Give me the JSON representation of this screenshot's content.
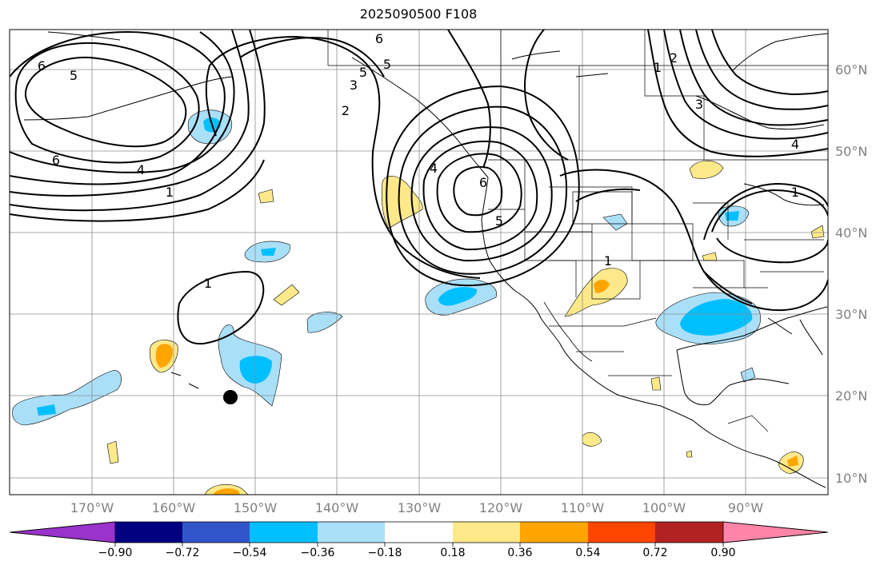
{
  "title": "2025090500 F108",
  "lat_labels": [
    "60°N",
    "50°N",
    "40°N",
    "30°N",
    "20°N",
    "10°N"
  ],
  "lon_labels": [
    "170°W",
    "160°W",
    "150°W",
    "140°W",
    "130°W",
    "120°W",
    "110°W",
    "100°W",
    "90°W"
  ],
  "contour_labels": [
    "6",
    "5",
    "6",
    "4",
    "1",
    "5",
    "3",
    "2",
    "6",
    "5",
    "4",
    "6",
    "5",
    "1",
    "1",
    "1",
    "2",
    "3",
    "4",
    "1"
  ],
  "colorbar": {
    "tick_labels": [
      "−0.90",
      "−0.72",
      "−0.54",
      "−0.36",
      "−0.18",
      "0.18",
      "0.36",
      "0.54",
      "0.72",
      "0.90"
    ],
    "colors": [
      "#9933cc",
      "#000080",
      "#3355cc",
      "#00bfff",
      "#aadff8",
      "#ffffff",
      "#fde98a",
      "#ffa500",
      "#ff4500",
      "#b22222",
      "#ff85a8"
    ]
  },
  "fill_colors": {
    "light_blue": "#aadff8",
    "blue": "#00bfff",
    "yellow": "#fde98a",
    "orange": "#ffa500",
    "red": "#ff4500"
  }
}
